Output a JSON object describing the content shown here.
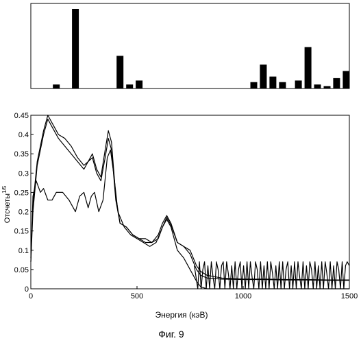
{
  "caption": "Фиг. 9",
  "chart_data": [
    {
      "type": "bar",
      "xlim": [
        0,
        1500
      ],
      "ylim": [
        0,
        1
      ],
      "axis_ticks": false,
      "x": [
        120,
        210,
        420,
        465,
        510,
        1050,
        1095,
        1140,
        1185,
        1260,
        1305,
        1350,
        1395,
        1440,
        1485
      ],
      "values": [
        0.05,
        1.0,
        0.41,
        0.05,
        0.1,
        0.08,
        0.3,
        0.15,
        0.08,
        0.1,
        0.52,
        0.05,
        0.03,
        0.13,
        0.22
      ]
    },
    {
      "type": "line",
      "xlabel": "Энергия (кэВ)",
      "ylabel_main": "Отсчеты",
      "ylabel_sup": "1/5",
      "xlim": [
        0,
        1500
      ],
      "ylim": [
        0,
        0.45
      ],
      "xticks": [
        "0",
        "500",
        "1000",
        "1500"
      ],
      "yticks": [
        "0",
        "0.05",
        "0.1",
        "0.15",
        "0.2",
        "0.25",
        "0.3",
        "0.35",
        "0.4",
        "0.45"
      ],
      "series": [
        {
          "x": [
            0,
            10,
            30,
            60,
            80,
            100,
            130,
            160,
            190,
            220,
            250,
            270,
            290,
            310,
            330,
            350,
            365,
            380,
            400,
            420,
            450,
            480,
            510,
            540,
            570,
            600,
            620,
            640,
            660,
            690,
            720,
            750,
            780,
            800,
            830,
            900,
            1000,
            1100,
            1200,
            1300,
            1400,
            1500
          ],
          "values": [
            0.08,
            0.22,
            0.33,
            0.41,
            0.45,
            0.43,
            0.4,
            0.39,
            0.37,
            0.34,
            0.32,
            0.33,
            0.35,
            0.31,
            0.29,
            0.36,
            0.41,
            0.38,
            0.24,
            0.17,
            0.16,
            0.14,
            0.13,
            0.13,
            0.12,
            0.14,
            0.17,
            0.19,
            0.17,
            0.12,
            0.11,
            0.1,
            0.06,
            0.045,
            0.035,
            0.028,
            0.025,
            0.025,
            0.024,
            0.024,
            0.023,
            0.023
          ]
        },
        {
          "x": [
            0,
            10,
            30,
            60,
            80,
            100,
            130,
            160,
            190,
            220,
            250,
            270,
            290,
            310,
            330,
            350,
            365,
            380,
            400,
            420,
            450,
            480,
            510,
            540,
            570,
            600,
            620,
            640,
            660,
            690,
            720,
            750,
            780,
            800,
            830,
            900,
            1000,
            1100,
            1200,
            1300,
            1400,
            1500
          ],
          "values": [
            0.07,
            0.2,
            0.32,
            0.4,
            0.44,
            0.42,
            0.39,
            0.37,
            0.35,
            0.33,
            0.31,
            0.33,
            0.34,
            0.3,
            0.28,
            0.34,
            0.39,
            0.36,
            0.23,
            0.17,
            0.16,
            0.14,
            0.13,
            0.12,
            0.12,
            0.13,
            0.16,
            0.185,
            0.165,
            0.12,
            0.11,
            0.09,
            0.05,
            0.035,
            0.028,
            0.025,
            0.024,
            0.024,
            0.023,
            0.023,
            0.022,
            0.022
          ]
        },
        {
          "x": [
            0,
            10,
            25,
            45,
            60,
            80,
            100,
            120,
            150,
            180,
            210,
            230,
            250,
            270,
            285,
            300,
            320,
            340,
            360,
            375,
            390,
            410,
            440,
            470,
            500,
            530,
            560,
            590,
            620,
            640,
            660,
            690,
            720,
            750,
            780,
            800,
            830,
            900,
            1000,
            1100,
            1200,
            1300,
            1400,
            1500
          ],
          "values": [
            0.07,
            0.24,
            0.28,
            0.25,
            0.26,
            0.23,
            0.23,
            0.25,
            0.25,
            0.23,
            0.2,
            0.24,
            0.25,
            0.21,
            0.24,
            0.25,
            0.2,
            0.23,
            0.34,
            0.36,
            0.3,
            0.2,
            0.16,
            0.14,
            0.13,
            0.12,
            0.11,
            0.12,
            0.16,
            0.18,
            0.16,
            0.1,
            0.08,
            0.05,
            0.02,
            0.005,
            0,
            0,
            0,
            0,
            0,
            0,
            0,
            0
          ]
        },
        {
          "x": [
            770,
            778,
            786,
            794,
            802,
            810,
            818,
            826,
            834,
            842,
            850,
            858,
            866,
            874,
            882,
            890,
            898,
            906,
            914,
            922,
            930,
            938,
            946,
            954,
            962,
            970,
            978,
            986,
            994,
            1002,
            1010,
            1018,
            1026,
            1034,
            1042,
            1050,
            1058,
            1066,
            1074,
            1082,
            1090,
            1098,
            1106,
            1114,
            1122,
            1130,
            1138,
            1146,
            1154,
            1162,
            1170,
            1178,
            1186,
            1194,
            1202,
            1210,
            1218,
            1226,
            1234,
            1242,
            1250,
            1258,
            1266,
            1274,
            1282,
            1290,
            1298,
            1306,
            1314,
            1322,
            1330,
            1338,
            1346,
            1354,
            1362,
            1370,
            1378,
            1386,
            1394,
            1402,
            1410,
            1418,
            1426,
            1434,
            1442,
            1450,
            1458,
            1466,
            1474,
            1482,
            1490,
            1500
          ],
          "values": [
            0.06,
            0.03,
            0.0,
            0.07,
            0.0,
            0.05,
            0.07,
            0.0,
            0.06,
            0.0,
            0.07,
            0.03,
            0.0,
            0.07,
            0.05,
            0.0,
            0.06,
            0.07,
            0.0,
            0.07,
            0.04,
            0.0,
            0.06,
            0.0,
            0.07,
            0.0,
            0.05,
            0.07,
            0.0,
            0.06,
            0.0,
            0.07,
            0.0,
            0.07,
            0.03,
            0.0,
            0.07,
            0.05,
            0.0,
            0.07,
            0.0,
            0.06,
            0.0,
            0.07,
            0.0,
            0.07,
            0.04,
            0.0,
            0.06,
            0.0,
            0.07,
            0.0,
            0.07,
            0.0,
            0.05,
            0.07,
            0.0,
            0.06,
            0.0,
            0.07,
            0.0,
            0.07,
            0.03,
            0.0,
            0.07,
            0.0,
            0.06,
            0.0,
            0.07,
            0.05,
            0.0,
            0.07,
            0.0,
            0.06,
            0.0,
            0.07,
            0.0,
            0.07,
            0.04,
            0.0,
            0.07,
            0.0,
            0.06,
            0.0,
            0.07,
            0.05,
            0.0,
            0.07,
            0.0,
            0.06,
            0.07,
            0.06
          ]
        }
      ]
    }
  ]
}
